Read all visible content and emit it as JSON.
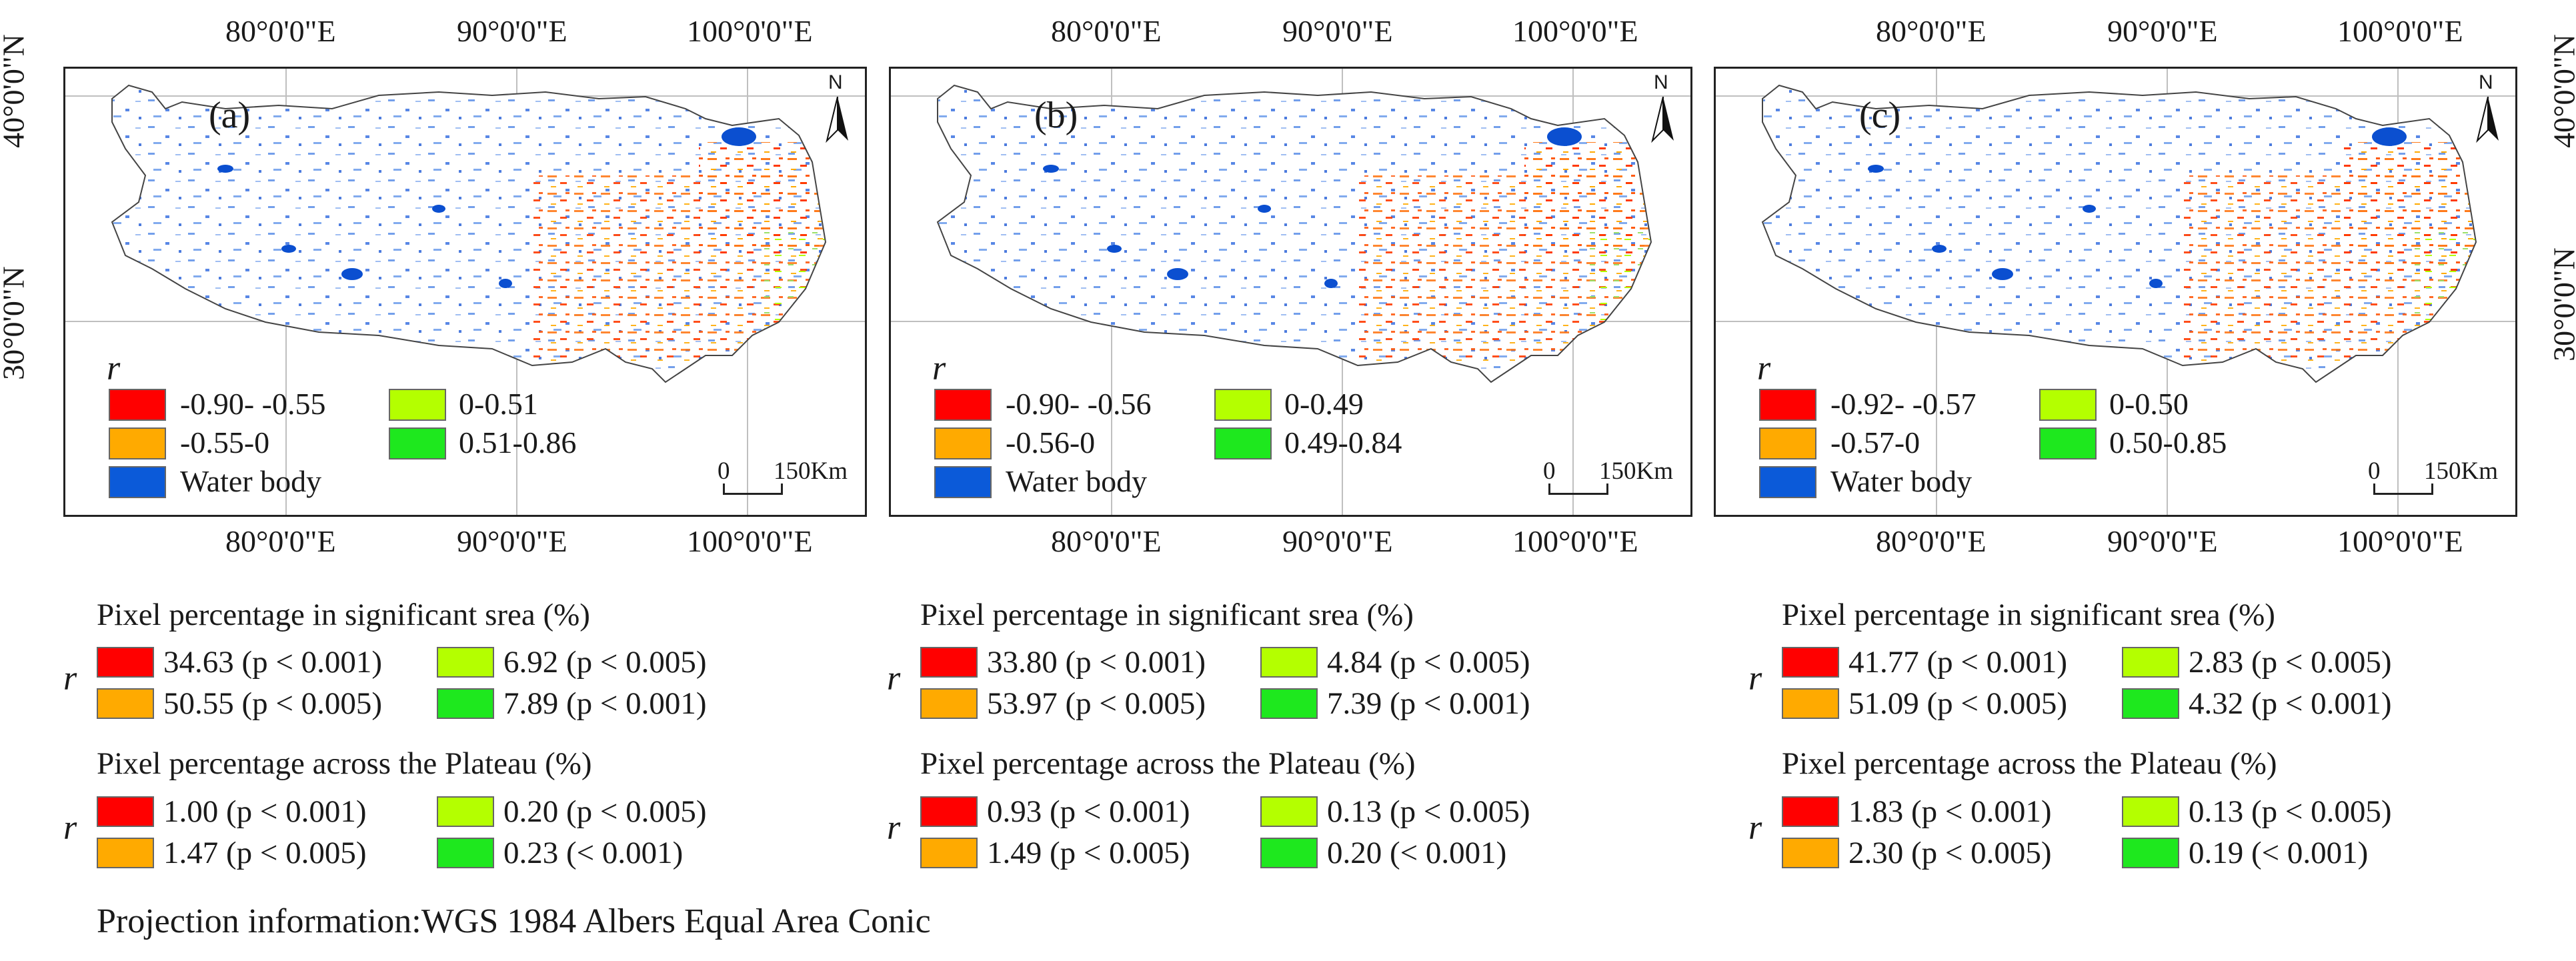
{
  "colors": {
    "strong_negative": "#ff0000",
    "negative": "#ffaa00",
    "weak_positive": "#b4ff00",
    "strong_positive": "#1ee81e",
    "water": "#0b5ad9"
  },
  "coordinates": {
    "lon_labels": [
      "80°0'0\"E",
      "90°0'0\"E",
      "100°0'0\"E"
    ],
    "lat_labels": [
      "40°0'0\"N",
      "30°0'0\"N"
    ]
  },
  "north_arrow": "N",
  "scale_bar": {
    "zero": "0",
    "distance": "150Km"
  },
  "legend_symbol": "r",
  "water_label": "Water body",
  "significant_title": "Pixel percentage in significant srea (%)",
  "plateau_title": "Pixel percentage across the Plateau (%)",
  "panels": [
    {
      "label": "(a)",
      "legend": [
        "-0.90- -0.55",
        "-0.55-0",
        "0-0.51",
        "0.51-0.86"
      ],
      "significant": [
        "34.63 (p < 0.001)",
        "50.55 (p < 0.005)",
        "6.92 (p < 0.005)",
        "7.89 (p < 0.001)"
      ],
      "plateau": [
        "1.00 (p < 0.001)",
        "1.47 (p < 0.005)",
        "0.20 (p < 0.005)",
        "0.23 (< 0.001)"
      ]
    },
    {
      "label": "(b)",
      "legend": [
        "-0.90- -0.56",
        "-0.56-0",
        "0-0.49",
        "0.49-0.84"
      ],
      "significant": [
        "33.80 (p < 0.001)",
        "53.97 (p < 0.005)",
        "4.84 (p < 0.005)",
        "7.39 (p < 0.001)"
      ],
      "plateau": [
        "0.93 (p < 0.001)",
        "1.49 (p < 0.005)",
        "0.13 (p < 0.005)",
        "0.20 (< 0.001)"
      ]
    },
    {
      "label": "(c)",
      "legend": [
        "-0.92- -0.57",
        "-0.57-0",
        "0-0.50",
        "0.50-0.85"
      ],
      "significant": [
        "41.77 (p < 0.001)",
        "51.09 (p < 0.005)",
        "2.83 (p < 0.005)",
        "4.32 (p < 0.001)"
      ],
      "plateau": [
        "1.83 (p < 0.001)",
        "2.30 (p < 0.005)",
        "0.13 (p < 0.005)",
        "0.19 (< 0.001)"
      ]
    }
  ],
  "projection": "Projection information:WGS 1984 Albers Equal Area Conic"
}
